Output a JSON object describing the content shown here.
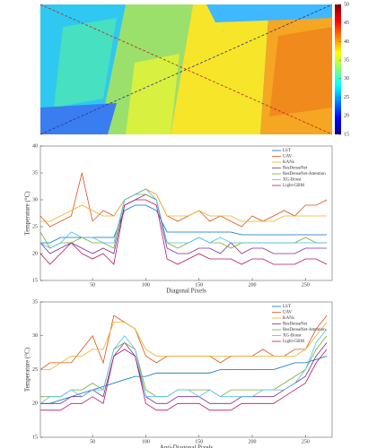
{
  "chart_data": [
    {
      "type": "heatmap",
      "clim": [
        15,
        50
      ],
      "cticks": [
        15,
        20,
        25,
        30,
        35,
        40,
        45,
        50
      ]
    },
    {
      "type": "line",
      "xlabel": "Diagonal Pixels",
      "ylabel": "Temperature (°C)",
      "x": [
        1,
        10,
        20,
        30,
        40,
        50,
        60,
        70,
        80,
        90,
        100,
        110,
        120,
        130,
        140,
        150,
        160,
        170,
        180,
        190,
        200,
        210,
        220,
        230,
        240,
        250,
        260,
        270
      ],
      "xlim": [
        1,
        275
      ],
      "xticks": [
        50,
        100,
        150,
        200,
        250
      ],
      "ylim": [
        15,
        40
      ],
      "yticks": [
        15,
        20,
        25,
        30,
        35,
        40
      ],
      "series": [
        {
          "name": "LST",
          "color": "#0072bd",
          "values": [
            22,
            22,
            23,
            23,
            23,
            23,
            23,
            23,
            28,
            29,
            29,
            28,
            24,
            24,
            24,
            24,
            24,
            24,
            24,
            23.5,
            23.5,
            23.5,
            23.5,
            23.5,
            23.5,
            23.5,
            23.5,
            23.5
          ]
        },
        {
          "name": "UAV",
          "color": "#d95319",
          "values": [
            27,
            25,
            26,
            27,
            35,
            26,
            28,
            27,
            30,
            31,
            32,
            31,
            27,
            26,
            27,
            28,
            26,
            27,
            26,
            25,
            27,
            26,
            27,
            28,
            27,
            29,
            29,
            30
          ]
        },
        {
          "name": "KANs",
          "color": "#edb120",
          "values": [
            26,
            26,
            27,
            28,
            29,
            28,
            27,
            27,
            30,
            31,
            32,
            31,
            27,
            27,
            27,
            28,
            27,
            27,
            27,
            26,
            26,
            26,
            26,
            27,
            27,
            27,
            27,
            27
          ]
        },
        {
          "name": "ResDenseNet",
          "color": "#7e2f8e",
          "values": [
            22,
            20,
            21,
            22,
            21,
            20,
            21,
            20,
            29,
            30,
            31,
            30,
            21,
            20,
            20,
            21,
            21,
            20,
            22,
            20,
            21,
            21,
            20,
            20,
            20,
            21,
            21,
            21
          ]
        },
        {
          "name": "ResDenseNet-Attention",
          "color": "#77ac30",
          "values": [
            24,
            21,
            22,
            22,
            23,
            22,
            22,
            21,
            30,
            31,
            31,
            30,
            22,
            21,
            22,
            23,
            22,
            22,
            21,
            22,
            22,
            22,
            22,
            22,
            22,
            23,
            22,
            22
          ]
        },
        {
          "name": "XG-Boost",
          "color": "#4dbeee",
          "values": [
            22,
            21,
            22,
            24,
            23,
            23,
            22,
            22,
            30,
            31,
            32,
            30,
            22,
            22,
            22,
            23,
            22,
            23,
            22,
            22,
            22,
            22,
            22,
            22,
            22,
            22,
            22,
            22
          ]
        },
        {
          "name": "Light-GBM",
          "color": "#b0186e",
          "values": [
            20,
            18,
            20,
            22,
            20,
            19,
            20,
            18,
            29,
            30,
            30,
            29,
            19,
            18,
            19,
            20,
            19,
            19,
            19,
            18,
            19,
            19,
            18,
            18,
            18,
            19,
            19,
            18
          ]
        }
      ]
    },
    {
      "type": "line",
      "xlabel": "Anti-Diagonal Pixels",
      "ylabel": "Temperature (°C)",
      "x": [
        1,
        10,
        20,
        30,
        40,
        50,
        60,
        70,
        80,
        90,
        100,
        110,
        120,
        130,
        140,
        150,
        160,
        170,
        180,
        190,
        200,
        210,
        220,
        230,
        240,
        250,
        260,
        270
      ],
      "xlim": [
        1,
        275
      ],
      "xticks": [
        50,
        100,
        150,
        200,
        250
      ],
      "ylim": [
        15,
        35
      ],
      "yticks": [
        15,
        20,
        25,
        30,
        35
      ],
      "series": [
        {
          "name": "LST",
          "color": "#0072bd",
          "values": [
            20,
            20,
            20.5,
            21,
            21.5,
            22,
            22.5,
            23,
            23.5,
            24,
            24,
            24.5,
            24.5,
            24.5,
            24.5,
            24.5,
            24.5,
            25,
            25,
            25,
            25,
            25,
            25,
            25.5,
            26,
            26,
            26.5,
            27
          ]
        },
        {
          "name": "UAV",
          "color": "#d95319",
          "values": [
            25,
            26,
            26,
            26,
            28,
            30,
            26,
            33,
            32,
            31,
            27,
            26,
            27,
            27,
            27,
            27,
            27,
            26,
            27,
            27,
            27,
            28,
            27,
            27,
            28,
            28,
            31,
            33
          ]
        },
        {
          "name": "KANs",
          "color": "#edb120",
          "values": [
            25,
            25,
            26,
            27,
            27,
            28,
            28,
            32,
            32,
            31,
            28,
            27,
            27,
            27,
            27,
            27,
            27,
            27,
            27,
            27,
            27,
            27,
            27,
            27,
            27,
            28,
            30,
            32
          ]
        },
        {
          "name": "ResDenseNet",
          "color": "#7e2f8e",
          "values": [
            20,
            20,
            20,
            21,
            21,
            22,
            21,
            27,
            29,
            27,
            21,
            20,
            20,
            21,
            21,
            21,
            20,
            20,
            20,
            21,
            21,
            21,
            21,
            22,
            23,
            24,
            27,
            29
          ]
        },
        {
          "name": "ResDenseNet-Attention",
          "color": "#77ac30",
          "values": [
            21,
            21,
            21,
            22,
            22,
            23,
            22,
            28,
            29,
            28,
            22,
            21,
            21,
            22,
            22,
            22,
            22,
            21,
            22,
            22,
            22,
            22,
            22,
            23,
            24,
            25,
            28,
            30
          ]
        },
        {
          "name": "XG-Boost",
          "color": "#4dbeee",
          "values": [
            20,
            21,
            21,
            22,
            21,
            22,
            22,
            28,
            30,
            28,
            21,
            21,
            21,
            22,
            22,
            21,
            22,
            21,
            21,
            21,
            21,
            22,
            22,
            22,
            23,
            25,
            29,
            31
          ]
        },
        {
          "name": "Light-GBM",
          "color": "#b0186e",
          "values": [
            19,
            19,
            19,
            20,
            20,
            21,
            20,
            27,
            28,
            27,
            20,
            19,
            19,
            20,
            20,
            20,
            19,
            19,
            19,
            20,
            20,
            20,
            20,
            21,
            22,
            23,
            26,
            28
          ]
        }
      ]
    }
  ]
}
